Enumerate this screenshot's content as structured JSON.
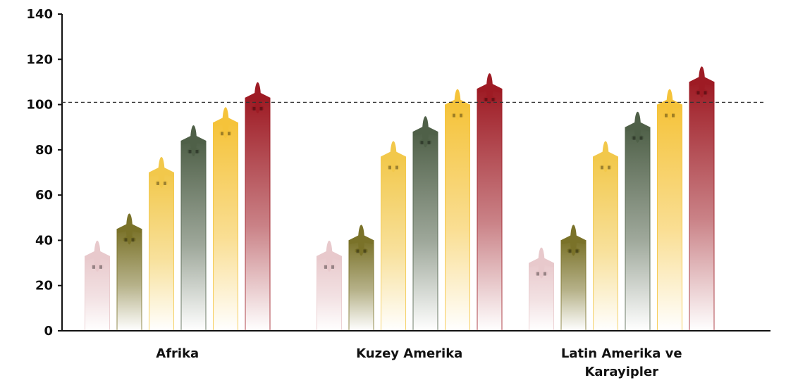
{
  "chart_data": {
    "type": "bar",
    "categories": [
      [
        "Afrika"
      ],
      [
        "Kuzey Amerika"
      ],
      [
        "Latin Amerika ve",
        "Karayipler"
      ]
    ],
    "series": [
      {
        "values": [
          33,
          33,
          30
        ],
        "color": "#E8C9CC"
      },
      {
        "values": [
          45,
          40,
          40
        ],
        "color": "#7A7229"
      },
      {
        "values": [
          70,
          77,
          77
        ],
        "color": "#F2C84B"
      },
      {
        "values": [
          84,
          88,
          90
        ],
        "color": "#4F6048"
      },
      {
        "values": [
          92,
          100,
          100
        ],
        "color": "#F5C33A"
      },
      {
        "values": [
          103,
          107,
          110
        ],
        "color": "#9E1B24"
      }
    ],
    "reference_line": 101,
    "ylim": [
      0,
      140
    ],
    "yticks": [
      0,
      20,
      40,
      60,
      80,
      100,
      120,
      140
    ],
    "xlabel": "",
    "ylabel": "",
    "grid": false,
    "legend": "none",
    "icon": "airplane-icon"
  }
}
